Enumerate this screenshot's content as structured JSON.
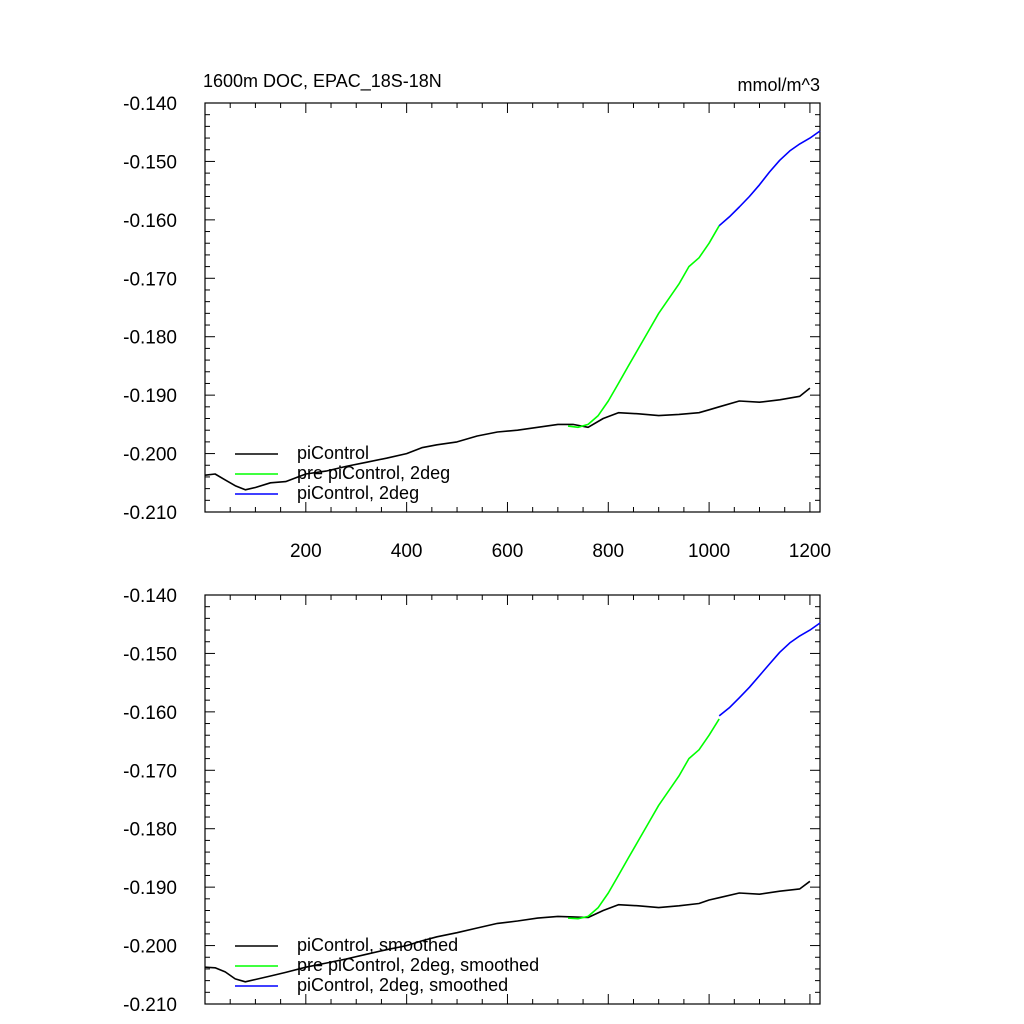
{
  "chart_data": [
    {
      "type": "line",
      "title_left": "1600m DOC, EPAC_18S-18N",
      "title_right": "mmol/m^3",
      "xlim": [
        0,
        1220
      ],
      "ylim": [
        -0.21,
        -0.14
      ],
      "xticks": [
        200,
        400,
        600,
        800,
        1000,
        1200
      ],
      "yticks": [
        -0.21,
        -0.2,
        -0.19,
        -0.18,
        -0.17,
        -0.16,
        -0.15,
        -0.14
      ],
      "ytick_labels": [
        "-0.210",
        "-0.200",
        "-0.190",
        "-0.180",
        "-0.170",
        "-0.160",
        "-0.150",
        "-0.140"
      ],
      "show_xtick_labels": true,
      "legend_position": "bottom-left",
      "series": [
        {
          "name": "piControl",
          "color": "#000000",
          "x": [
            0,
            20,
            40,
            60,
            80,
            100,
            130,
            160,
            200,
            240,
            280,
            320,
            360,
            400,
            430,
            460,
            500,
            540,
            580,
            620,
            660,
            700,
            730,
            760,
            790,
            820,
            860,
            900,
            940,
            980,
            1000,
            1020,
            1060,
            1100,
            1140,
            1180,
            1200
          ],
          "values": [
            -0.2037,
            -0.2035,
            -0.2045,
            -0.2055,
            -0.2062,
            -0.2058,
            -0.205,
            -0.2048,
            -0.2035,
            -0.203,
            -0.2022,
            -0.2015,
            -0.2008,
            -0.2,
            -0.199,
            -0.1985,
            -0.198,
            -0.197,
            -0.1963,
            -0.196,
            -0.1955,
            -0.195,
            -0.195,
            -0.1955,
            -0.194,
            -0.193,
            -0.1932,
            -0.1935,
            -0.1933,
            -0.193,
            -0.1925,
            -0.192,
            -0.191,
            -0.1912,
            -0.1908,
            -0.1902,
            -0.1888
          ]
        },
        {
          "name": "pre piControl, 2deg",
          "color": "#00ff00",
          "x": [
            720,
            740,
            760,
            780,
            800,
            820,
            840,
            860,
            880,
            900,
            920,
            940,
            960,
            980,
            1000,
            1020
          ],
          "values": [
            -0.1953,
            -0.1955,
            -0.195,
            -0.1935,
            -0.191,
            -0.188,
            -0.185,
            -0.182,
            -0.179,
            -0.176,
            -0.1735,
            -0.171,
            -0.168,
            -0.1665,
            -0.164,
            -0.161
          ]
        },
        {
          "name": "piControl, 2deg",
          "color": "#0000ff",
          "x": [
            1020,
            1040,
            1060,
            1080,
            1100,
            1120,
            1140,
            1160,
            1180,
            1200,
            1220
          ],
          "values": [
            -0.161,
            -0.1595,
            -0.1578,
            -0.156,
            -0.154,
            -0.1518,
            -0.1498,
            -0.1482,
            -0.147,
            -0.146,
            -0.1448
          ]
        }
      ]
    },
    {
      "type": "line",
      "title_left": "",
      "title_right": "",
      "xlim": [
        0,
        1220
      ],
      "ylim": [
        -0.21,
        -0.14
      ],
      "xticks": [
        200,
        400,
        600,
        800,
        1000,
        1200
      ],
      "yticks": [
        -0.21,
        -0.2,
        -0.19,
        -0.18,
        -0.17,
        -0.16,
        -0.15,
        -0.14
      ],
      "ytick_labels": [
        "-0.210",
        "-0.200",
        "-0.190",
        "-0.180",
        "-0.170",
        "-0.160",
        "-0.150",
        "-0.140"
      ],
      "show_xtick_labels": false,
      "legend_position": "bottom-left",
      "series": [
        {
          "name": "piControl, smoothed",
          "color": "#000000",
          "x": [
            0,
            20,
            40,
            60,
            80,
            100,
            130,
            160,
            200,
            240,
            280,
            320,
            360,
            400,
            430,
            460,
            500,
            540,
            580,
            620,
            660,
            700,
            730,
            760,
            790,
            820,
            860,
            900,
            940,
            980,
            1000,
            1020,
            1060,
            1100,
            1140,
            1180,
            1200
          ],
          "values": [
            -0.2037,
            -0.2038,
            -0.2045,
            -0.2057,
            -0.2062,
            -0.2058,
            -0.2052,
            -0.2046,
            -0.2037,
            -0.203,
            -0.2023,
            -0.2015,
            -0.2007,
            -0.2,
            -0.1992,
            -0.1985,
            -0.1978,
            -0.197,
            -0.1962,
            -0.1958,
            -0.1953,
            -0.195,
            -0.1951,
            -0.1952,
            -0.194,
            -0.193,
            -0.1932,
            -0.1935,
            -0.1932,
            -0.1928,
            -0.1922,
            -0.1918,
            -0.191,
            -0.1912,
            -0.1907,
            -0.1903,
            -0.189
          ]
        },
        {
          "name": "pre piControl, 2deg, smoothed",
          "color": "#00ff00",
          "x": [
            720,
            740,
            760,
            780,
            800,
            820,
            840,
            860,
            880,
            900,
            920,
            940,
            960,
            980,
            1000,
            1020
          ],
          "values": [
            -0.1953,
            -0.1954,
            -0.195,
            -0.1935,
            -0.191,
            -0.188,
            -0.185,
            -0.182,
            -0.179,
            -0.176,
            -0.1735,
            -0.171,
            -0.168,
            -0.1665,
            -0.164,
            -0.1612
          ]
        },
        {
          "name": "piControl, 2deg, smoothed",
          "color": "#0000ff",
          "x": [
            1020,
            1040,
            1060,
            1080,
            1100,
            1120,
            1140,
            1160,
            1180,
            1200,
            1220
          ],
          "values": [
            -0.1607,
            -0.1593,
            -0.1576,
            -0.1558,
            -0.1538,
            -0.1518,
            -0.1498,
            -0.1482,
            -0.147,
            -0.146,
            -0.1448
          ]
        }
      ]
    }
  ]
}
